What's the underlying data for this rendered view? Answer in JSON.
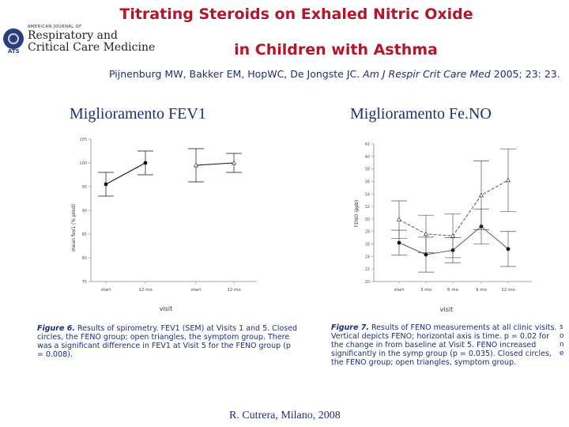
{
  "logo": {
    "small_text": "AMERICAN JOURNAL OF",
    "line1": "Respiratory and",
    "line2": "Critical Care Medicine",
    "badge": "ATS"
  },
  "title": {
    "line1": "Titrating Steroids on Exhaled Nitric Oxide",
    "line2": "in Children with Asthma"
  },
  "citation": {
    "authors": "Pijnenburg MW, Bakker EM, Hop",
    "authors2": "WC, De Jongste JC.",
    "journal": "Am J Respir Crit Care Med",
    "details": "2005; 23: 23."
  },
  "headings": {
    "left": "Miglioramento FEV1",
    "right": "Miglioramento Fe.NO"
  },
  "captions": {
    "left_label": "Figure 6.",
    "left_text": "Results of spirometry. FEV1 (SEM) at Visits 1 and 5. Closed circles, the FENO group; open triangles, the symptom group. There was a significant difference in FEV1 at Visit 5 for the FENO group (p = 0.008).",
    "right_label": "Figure 7.",
    "right_text": "Results of FENO measurements at all clinic visits. Vertical depicts FENO; horizontal axis is time. p = 0.02 for the change in from baseline at Visit 5. FENO increased significantly in the symp group (p = 0.035). Closed circles, the FENO group; open triangles, symptom group.",
    "right_edge": "s\no\nn\ne"
  },
  "footer": "R. Cutrera, Milano, 2008",
  "chart_data": [
    {
      "type": "line",
      "title": "",
      "xlabel": "visit",
      "ylabel": "mean fev1 (% pred)",
      "categories": [
        "start",
        "12 mo",
        "start",
        "12 mo"
      ],
      "yticks": [
        "75",
        "80",
        "85",
        "90",
        "95",
        "100",
        "105"
      ],
      "ylim": [
        75,
        105
      ],
      "grid": false,
      "series": [
        {
          "values": [
            95.5,
            100.0,
            null,
            null
          ],
          "errors": [
            2.5,
            2.5,
            null,
            null
          ],
          "marker": "closed-circle",
          "line": "solid",
          "color": "#111111"
        },
        {
          "values": [
            null,
            null,
            99.5,
            100.0
          ],
          "errors": [
            null,
            null,
            3.5,
            2.0
          ],
          "marker": "open-triangle",
          "line": "solid",
          "color": "#111111"
        }
      ]
    },
    {
      "type": "line",
      "title": "",
      "xlabel": "visit",
      "ylabel": "FENO (ppb)",
      "categories": [
        "start",
        "3 mo",
        "6 mo",
        "9 mo",
        "12 mo"
      ],
      "yticks": [
        "20",
        "22",
        "24",
        "26",
        "28",
        "30",
        "32",
        "34",
        "36",
        "38",
        "40",
        "42"
      ],
      "ylim": [
        20,
        42
      ],
      "grid": false,
      "series": [
        {
          "values": [
            26.2,
            24.3,
            25.0,
            28.8,
            25.2
          ],
          "errors": [
            2.0,
            2.8,
            2.0,
            2.8,
            2.8
          ],
          "marker": "closed-circle",
          "line": "solid",
          "color": "#555555"
        },
        {
          "values": [
            29.9,
            27.6,
            27.3,
            33.8,
            36.2
          ],
          "errors": [
            3.0,
            3.0,
            3.5,
            5.5,
            5.0
          ],
          "marker": "open-triangle",
          "line": "dashed",
          "color": "#555555"
        }
      ]
    }
  ]
}
